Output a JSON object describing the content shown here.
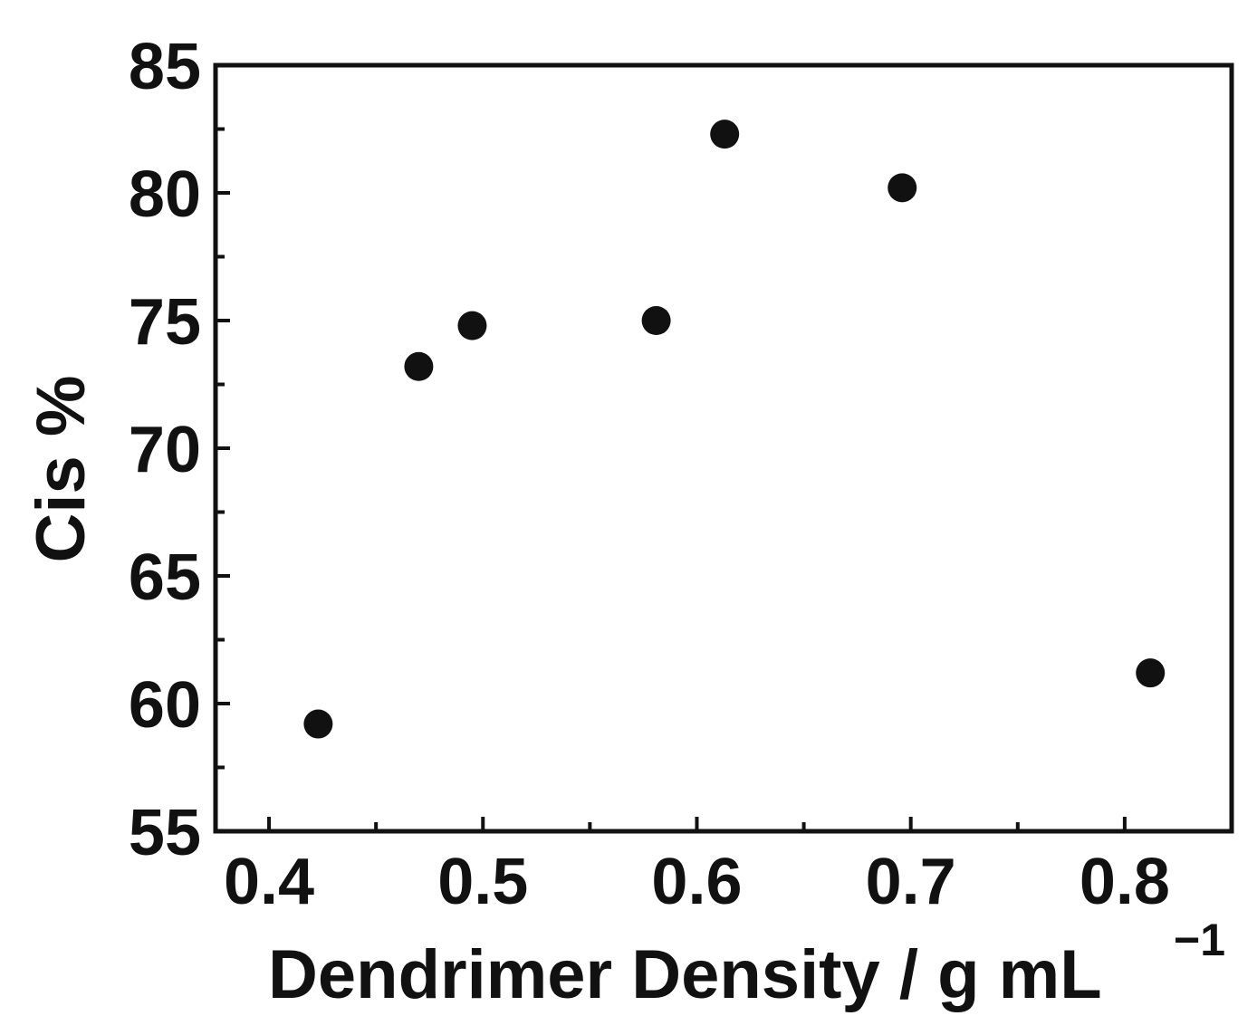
{
  "chart_data": {
    "type": "scatter",
    "xlabel": "Dendrimer Density / g mL",
    "xlabel_superscript": "−1",
    "ylabel": "Cis %",
    "xlim": [
      0.375,
      0.85
    ],
    "ylim": [
      55,
      85
    ],
    "xticks": [
      0.4,
      0.5,
      0.6,
      0.7,
      0.8
    ],
    "xtick_labels": [
      "0.4",
      "0.5",
      "0.6",
      "0.7",
      "0.8"
    ],
    "xminor_ticks": [
      0.45,
      0.55,
      0.65,
      0.75
    ],
    "yticks": [
      55,
      60,
      65,
      70,
      75,
      80,
      85
    ],
    "ytick_labels": [
      "55",
      "60",
      "65",
      "70",
      "75",
      "80",
      "85"
    ],
    "yminor_ticks": [
      57.5,
      62.5,
      67.5,
      72.5,
      77.5,
      82.5
    ],
    "grid": false,
    "marker_color": "#111111",
    "series": [
      {
        "x": [
          0.423,
          0.47,
          0.495,
          0.581,
          0.613,
          0.696,
          0.812
        ],
        "y": [
          59.2,
          73.2,
          74.8,
          75.0,
          82.3,
          80.2,
          61.2
        ]
      }
    ]
  }
}
